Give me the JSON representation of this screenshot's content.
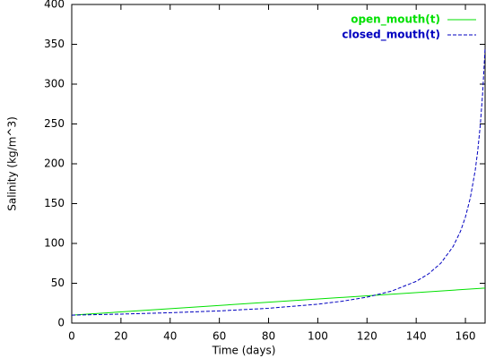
{
  "chart_data": {
    "type": "line",
    "x_label": "Time (days)",
    "y_label": "Salinity (kg/m^3)",
    "xlim": [
      0,
      168
    ],
    "ylim": [
      0,
      400
    ],
    "xticks": [
      0,
      20,
      40,
      60,
      80,
      100,
      120,
      140,
      160
    ],
    "yticks": [
      0,
      50,
      100,
      150,
      200,
      250,
      300,
      350,
      400
    ],
    "legend": "top-right",
    "series": [
      {
        "name": "open_mouth(t)",
        "color": "#00e000",
        "dash": "solid",
        "x": [
          0,
          168
        ],
        "values": [
          10,
          44
        ]
      },
      {
        "name": "closed_mouth(t)",
        "color": "#0000c0",
        "dash": "dashed",
        "x": [
          0,
          20,
          40,
          60,
          80,
          100,
          110,
          120,
          130,
          140,
          145,
          150,
          155,
          158,
          160,
          162,
          164,
          165,
          166,
          167,
          168
        ],
        "values": [
          10,
          11.3,
          13.0,
          15.3,
          18.6,
          23.7,
          27.5,
          32.6,
          40.2,
          52.4,
          61.8,
          75.2,
          96.1,
          115.3,
          133.1,
          157.3,
          192.2,
          216.3,
          247.1,
          288.3,
          346
        ]
      }
    ]
  }
}
